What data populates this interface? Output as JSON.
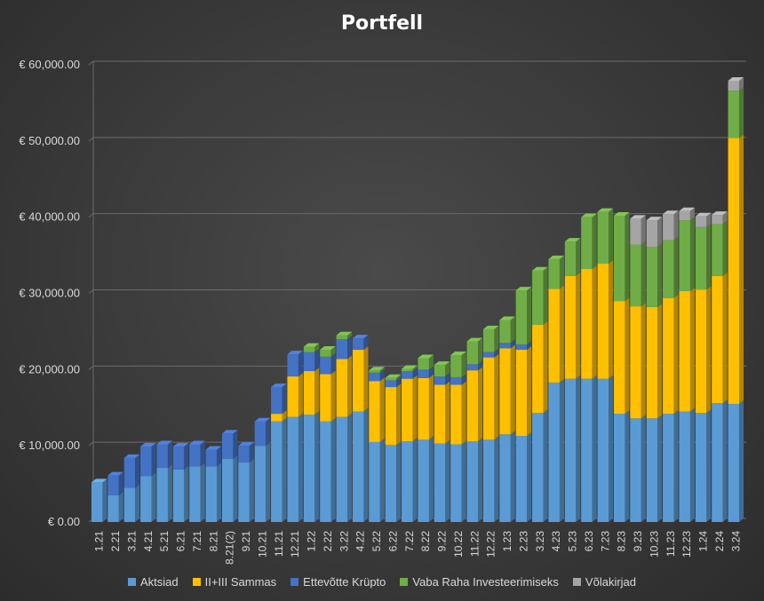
{
  "chart_data": {
    "type": "bar",
    "stacked": true,
    "title": "Portfell",
    "xlabel": "",
    "ylabel": "",
    "ylim": [
      0,
      60000
    ],
    "yticks": [
      0,
      10000,
      20000,
      30000,
      40000,
      50000,
      60000
    ],
    "ytick_labels": [
      "€ 0.00",
      "€ 10,000.00",
      "€ 20,000.00",
      "€ 30,000.00",
      "€ 40,000.00",
      "€ 50,000.00",
      "€ 60,000.00"
    ],
    "grid": true,
    "legend_position": "bottom",
    "categories": [
      "1.21",
      "2.21",
      "3.21",
      "4.21",
      "5.21",
      "6.21",
      "7.21",
      "8.21",
      "8.21(2)",
      "9.21",
      "10.21",
      "11.21",
      "12.21",
      "1.22",
      "2.22",
      "3.22",
      "4.22",
      "5.22",
      "6.22",
      "7.22",
      "8.22",
      "9.22",
      "10.22",
      "11.22",
      "12.22",
      "1.23",
      "2.23",
      "3.23",
      "4.23",
      "5.23",
      "6.23",
      "7.23",
      "8.23",
      "9.23",
      "10.23",
      "11.23",
      "12.23",
      "1.24",
      "2.24",
      "3.24"
    ],
    "series": [
      {
        "name": "Aktsiad",
        "color": "#5b9bd5",
        "values": [
          5200,
          3500,
          4500,
          6000,
          7100,
          6900,
          7300,
          7300,
          8300,
          7800,
          10000,
          13200,
          13800,
          14100,
          13200,
          13800,
          14500,
          10500,
          10100,
          10600,
          10800,
          10300,
          10200,
          10600,
          10800,
          11500,
          11300,
          14300,
          18300,
          18800,
          18800,
          18800,
          14200,
          13600,
          13600,
          14200,
          14500,
          14300,
          15600,
          15500
        ]
      },
      {
        "name": "II+III Sammas",
        "color": "#ffc000",
        "values": [
          0,
          0,
          0,
          0,
          0,
          0,
          0,
          0,
          0,
          0,
          0,
          1000,
          5300,
          5700,
          6200,
          7600,
          8100,
          8000,
          7600,
          8200,
          8100,
          7700,
          7800,
          9300,
          10800,
          11300,
          11300,
          11600,
          12300,
          13500,
          14400,
          15100,
          14800,
          14700,
          14600,
          15200,
          15800,
          16200,
          16700,
          34900
        ]
      },
      {
        "name": "Ettevõtte Krüpto",
        "color": "#4472c4",
        "values": [
          0,
          2600,
          3900,
          3900,
          3100,
          3000,
          2900,
          2200,
          3300,
          2200,
          3200,
          3500,
          2900,
          2500,
          2300,
          2600,
          1500,
          1100,
          900,
          1000,
          1100,
          1100,
          1000,
          800,
          700,
          700,
          700,
          0,
          0,
          0,
          0,
          0,
          0,
          0,
          0,
          0,
          0,
          0,
          0,
          0
        ]
      },
      {
        "name": "Vaba Raha Investeerimiseks",
        "color": "#70ad47",
        "values": [
          0,
          0,
          0,
          0,
          0,
          0,
          0,
          0,
          0,
          0,
          0,
          0,
          0,
          700,
          900,
          500,
          0,
          300,
          300,
          300,
          1500,
          1500,
          2900,
          3000,
          3000,
          3000,
          7100,
          7100,
          3900,
          4500,
          6800,
          6800,
          11200,
          8100,
          7900,
          7600,
          9300,
          8200,
          6800,
          6200
        ]
      },
      {
        "name": "Võlakirjad",
        "color": "#a5a5a5",
        "values": [
          0,
          0,
          0,
          0,
          0,
          0,
          0,
          0,
          0,
          0,
          0,
          0,
          0,
          0,
          0,
          0,
          0,
          0,
          0,
          0,
          0,
          0,
          0,
          0,
          0,
          0,
          0,
          0,
          0,
          0,
          0,
          0,
          0,
          3400,
          3500,
          3400,
          1200,
          1400,
          1200,
          1300
        ]
      }
    ]
  }
}
